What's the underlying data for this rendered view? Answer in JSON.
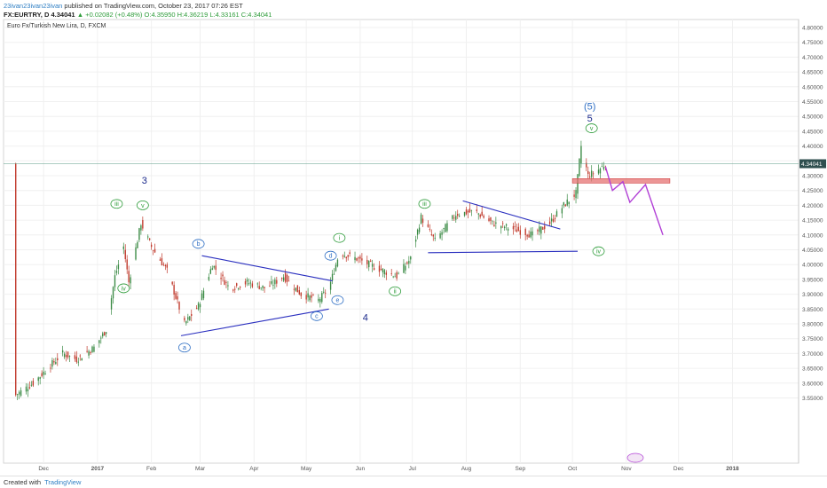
{
  "header": {
    "author": "23ivan23ivan23ivan",
    "published": "published on TradingView.com, October 23, 2017 07:26 EST",
    "symbol": "FX:EURTRY, D",
    "last": "4.34041",
    "change": "▲ +0.02082 (+0.48%)",
    "ohlc": "O:4.35950 H:4.36219 L:4.33161 C:4.34041"
  },
  "chart_title": "Euro Fx/Turkish New Lira, D, FXCM",
  "footer": {
    "created_with": "Created with",
    "brand": "TradingView"
  },
  "colors": {
    "up": "#3a8a44",
    "down": "#c0392b",
    "trend": "#2a2fbf",
    "projection": "#b13fd6",
    "zone": "#e57373",
    "price_line": "#5a9b86",
    "wave_green": "#2e9c3a",
    "wave_blue": "#2f6fc4",
    "wave_navy": "#1c2a8c"
  },
  "chart_data": {
    "type": "candlestick",
    "title": "Euro Fx/Turkish New Lira, D, FXCM",
    "x_ticks": [
      "Dec",
      "2017",
      "Feb",
      "Mar",
      "Apr",
      "May",
      "Jun",
      "Jul",
      "Aug",
      "Sep",
      "Oct",
      "Nov",
      "Dec",
      "2018"
    ],
    "ylim": [
      3.5,
      4.8
    ],
    "y_ticks": [
      "4.80000",
      "4.75000",
      "4.70000",
      "4.65000",
      "4.60000",
      "4.55000",
      "4.50000",
      "4.45000",
      "4.40000",
      "4.35000",
      "4.30000",
      "4.25000",
      "4.20000",
      "4.15000",
      "4.10000",
      "4.05000",
      "4.00000",
      "3.95000",
      "3.90000",
      "3.85000",
      "3.80000",
      "3.75000",
      "3.70000",
      "3.65000",
      "3.60000",
      "3.55000"
    ],
    "y_tick_values": [
      4.8,
      4.75,
      4.7,
      4.65,
      4.6,
      4.55,
      4.5,
      4.45,
      4.4,
      4.35,
      4.3,
      4.25,
      4.2,
      4.15,
      4.1,
      4.05,
      4.0,
      3.95,
      3.9,
      3.85,
      3.8,
      3.75,
      3.7,
      3.65,
      3.6,
      3.55
    ],
    "last_price": 4.34041,
    "last_price_label": "4.34041",
    "price_path": [
      [
        "2016-11-15",
        3.56
      ],
      [
        "2016-11-25",
        3.6
      ],
      [
        "2016-12-05",
        3.66
      ],
      [
        "2016-12-12",
        3.7
      ],
      [
        "2016-12-20",
        3.68
      ],
      [
        "2016-12-30",
        3.72
      ],
      [
        "2017-01-06",
        3.78
      ],
      [
        "2017-01-11",
        3.96
      ],
      [
        "2017-01-16",
        4.06
      ],
      [
        "2017-01-19",
        3.94
      ],
      [
        "2017-01-26",
        4.14
      ],
      [
        "2017-02-01",
        4.06
      ],
      [
        "2017-02-10",
        3.98
      ],
      [
        "2017-02-20",
        3.8
      ],
      [
        "2017-02-28",
        3.86
      ],
      [
        "2017-03-08",
        4.0
      ],
      [
        "2017-03-18",
        3.92
      ],
      [
        "2017-03-28",
        3.94
      ],
      [
        "2017-04-08",
        3.92
      ],
      [
        "2017-04-18",
        3.96
      ],
      [
        "2017-04-28",
        3.9
      ],
      [
        "2017-05-08",
        3.88
      ],
      [
        "2017-05-14",
        3.92
      ],
      [
        "2017-05-20",
        4.04
      ],
      [
        "2017-05-30",
        4.02
      ],
      [
        "2017-06-10",
        3.99
      ],
      [
        "2017-06-22",
        3.96
      ],
      [
        "2017-06-30",
        4.02
      ],
      [
        "2017-07-06",
        4.16
      ],
      [
        "2017-07-14",
        4.08
      ],
      [
        "2017-07-26",
        4.17
      ],
      [
        "2017-08-06",
        4.18
      ],
      [
        "2017-08-16",
        4.14
      ],
      [
        "2017-08-28",
        4.12
      ],
      [
        "2017-09-08",
        4.1
      ],
      [
        "2017-09-18",
        4.14
      ],
      [
        "2017-09-26",
        4.2
      ],
      [
        "2017-10-03",
        4.24
      ],
      [
        "2017-10-06",
        4.4
      ],
      [
        "2017-10-10",
        4.3
      ],
      [
        "2017-10-16",
        4.32
      ],
      [
        "2017-10-20",
        4.34
      ]
    ],
    "projection": [
      [
        "2017-10-20",
        4.33
      ],
      [
        "2017-10-24",
        4.25
      ],
      [
        "2017-10-30",
        4.28
      ],
      [
        "2017-11-03",
        4.21
      ],
      [
        "2017-11-12",
        4.27
      ],
      [
        "2017-11-22",
        4.1
      ]
    ],
    "resistance_zone": {
      "x": [
        "2017-10-01",
        "2017-11-26"
      ],
      "y": [
        4.275,
        4.29
      ]
    },
    "trendlines": [
      {
        "from": [
          "2017-02-18",
          3.76
        ],
        "to": [
          "2017-05-14",
          3.85
        ]
      },
      {
        "from": [
          "2017-03-02",
          4.03
        ],
        "to": [
          "2017-05-16",
          3.945
        ]
      },
      {
        "from": [
          "2017-07-10",
          4.04
        ],
        "to": [
          "2017-10-04",
          4.045
        ]
      },
      {
        "from": [
          "2017-07-30",
          4.215
        ],
        "to": [
          "2017-09-24",
          4.12
        ]
      }
    ],
    "wave_labels": [
      {
        "text": "3",
        "date": "2017-01-28",
        "price": 4.285,
        "style": "navy"
      },
      {
        "text": "iii",
        "date": "2017-01-12",
        "price": 4.205,
        "style": "green"
      },
      {
        "text": "v",
        "date": "2017-01-27",
        "price": 4.2,
        "style": "green"
      },
      {
        "text": "iv",
        "date": "2017-01-16",
        "price": 3.92,
        "style": "green"
      },
      {
        "text": "b",
        "date": "2017-02-28",
        "price": 4.07,
        "style": "blue"
      },
      {
        "text": "a",
        "date": "2017-02-20",
        "price": 3.72,
        "style": "blue"
      },
      {
        "text": "c",
        "date": "2017-05-07",
        "price": 3.826,
        "style": "blue"
      },
      {
        "text": "d",
        "date": "2017-05-15",
        "price": 4.03,
        "style": "blue"
      },
      {
        "text": "e",
        "date": "2017-05-19",
        "price": 3.88,
        "style": "blue"
      },
      {
        "text": "4",
        "date": "2017-06-04",
        "price": 3.822,
        "style": "navy"
      },
      {
        "text": "i",
        "date": "2017-05-20",
        "price": 4.09,
        "style": "green"
      },
      {
        "text": "ii",
        "date": "2017-06-21",
        "price": 3.91,
        "style": "green"
      },
      {
        "text": "iii",
        "date": "2017-07-08",
        "price": 4.205,
        "style": "green"
      },
      {
        "text": "iv",
        "date": "2017-10-16",
        "price": 4.045,
        "style": "green"
      },
      {
        "text": "(5)",
        "date": "2017-10-11",
        "price": 4.535,
        "style": "blue-plain"
      },
      {
        "text": "5",
        "date": "2017-10-11",
        "price": 4.495,
        "style": "navy"
      },
      {
        "text": "v",
        "date": "2017-10-12",
        "price": 4.46,
        "style": "green"
      }
    ]
  }
}
